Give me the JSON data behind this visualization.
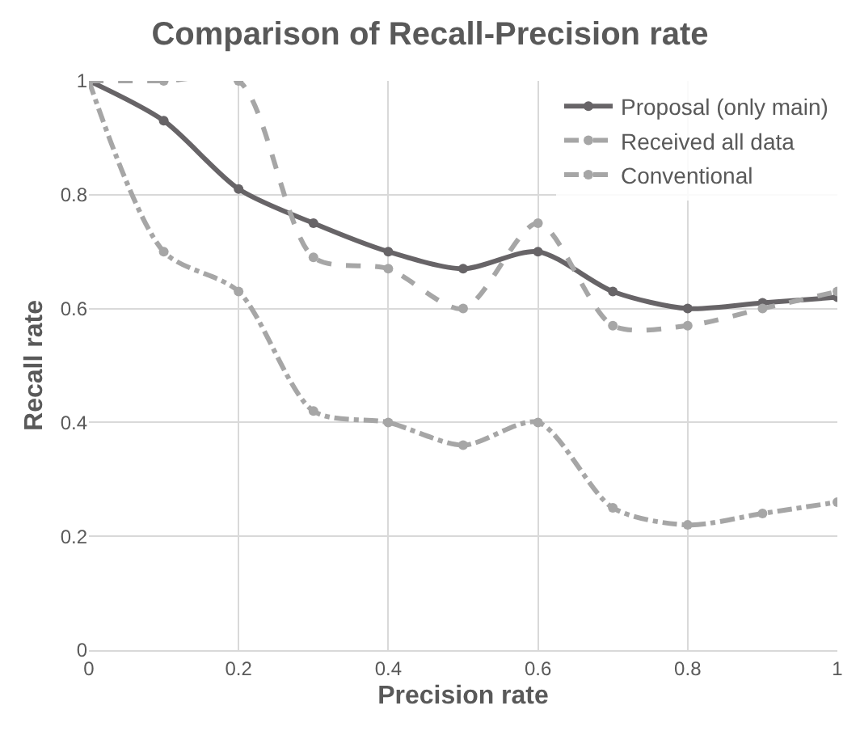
{
  "chart_data": {
    "type": "line",
    "title": "Comparison of Recall-Precision rate",
    "xlabel": "Precision rate",
    "ylabel": "Recall rate",
    "x": [
      0,
      0.1,
      0.2,
      0.3,
      0.4,
      0.5,
      0.6,
      0.7,
      0.8,
      0.9,
      1
    ],
    "series": [
      {
        "name": "Proposal (only main)",
        "color": "#676467",
        "line_style": "solid",
        "values": [
          1,
          0.93,
          0.81,
          0.75,
          0.7,
          0.67,
          0.7,
          0.63,
          0.6,
          0.61,
          0.62
        ]
      },
      {
        "name": "Received all data",
        "color": "#a6a6a6",
        "line_style": "dashed",
        "values": [
          1,
          1,
          1,
          0.69,
          0.67,
          0.6,
          0.75,
          0.57,
          0.57,
          0.6,
          0.63
        ]
      },
      {
        "name": "Conventional",
        "color": "#a6a6a6",
        "line_style": "dashdot",
        "values": [
          1,
          0.7,
          0.63,
          0.42,
          0.4,
          0.36,
          0.4,
          0.25,
          0.22,
          0.24,
          0.26
        ]
      }
    ],
    "xlim": [
      0,
      1
    ],
    "ylim": [
      0,
      1
    ],
    "xticks": [
      0,
      0.2,
      0.4,
      0.6,
      0.8,
      1
    ],
    "yticks": [
      0,
      0.2,
      0.4,
      0.6,
      0.8,
      1
    ],
    "grid": true,
    "legend": "top right",
    "marker": "circle"
  }
}
